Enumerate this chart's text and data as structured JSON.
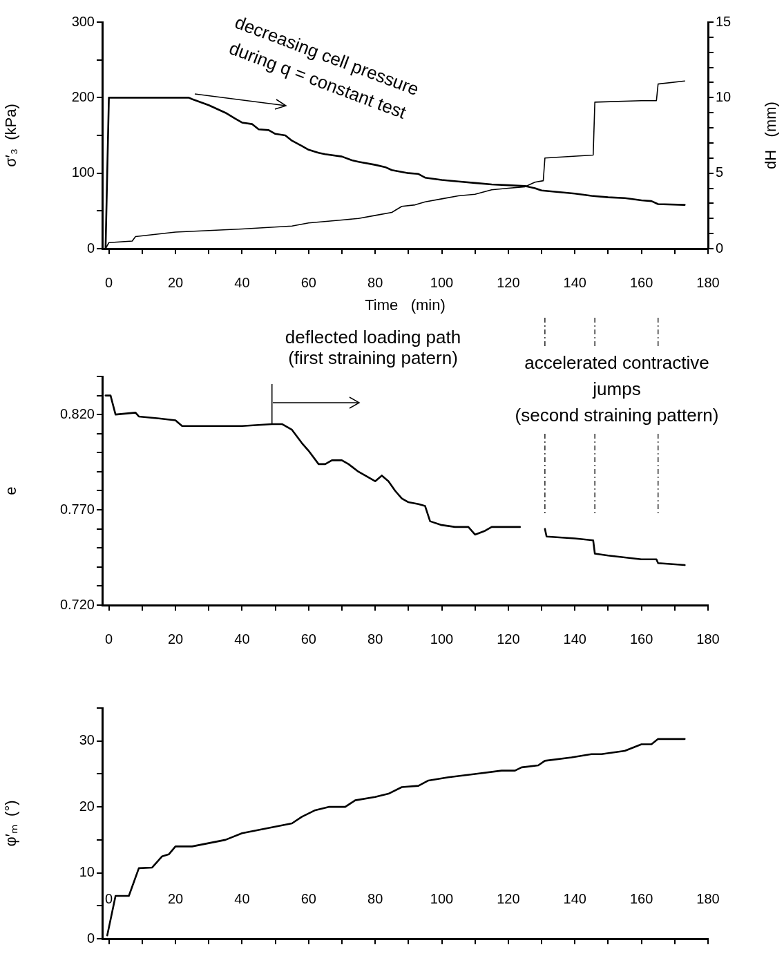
{
  "chart_data": [
    {
      "type": "line",
      "xlabel": "Time   (min)",
      "ylabel": "σ′₃  (kPa)",
      "y2label": "dH   (mm)",
      "xlim": [
        -2,
        180
      ],
      "xticks": [
        0,
        {
          "value": 10,
          "label": null
        },
        20,
        {
          "value": 30,
          "label": null
        },
        40,
        {
          "value": 50,
          "label": null
        },
        60,
        {
          "value": 70,
          "label": null
        },
        80,
        {
          "value": 90,
          "label": null
        },
        100,
        {
          "value": 110,
          "label": null
        },
        120,
        {
          "value": 130,
          "label": null
        },
        140,
        {
          "value": 150,
          "label": null
        },
        160,
        {
          "value": 170,
          "label": null
        },
        180
      ],
      "ylim": [
        0,
        300
      ],
      "yticks": [
        0,
        {
          "value": 50,
          "label": null
        },
        100,
        {
          "value": 150,
          "label": null
        },
        200,
        {
          "value": 250,
          "label": null
        },
        300
      ],
      "y2lim": [
        0,
        15
      ],
      "y2ticks": [
        0,
        {
          "value": 1,
          "label": null
        },
        {
          "value": 2,
          "label": null
        },
        {
          "value": 3,
          "label": null
        },
        {
          "value": 4,
          "label": null
        },
        5,
        {
          "value": 6,
          "label": null
        },
        {
          "value": 7,
          "label": null
        },
        {
          "value": 8,
          "label": null
        },
        {
          "value": 9,
          "label": null
        },
        10,
        {
          "value": 11,
          "label": null
        },
        {
          "value": 12,
          "label": null
        },
        {
          "value": 13,
          "label": null
        },
        {
          "value": 14,
          "label": null
        },
        15
      ],
      "annotations": [
        "decreasing cell pressure\nduring q = constant test"
      ],
      "series": [
        {
          "color": "#000000",
          "x": [
            -1,
            0,
            24,
            25,
            30,
            35,
            38,
            40,
            43,
            45,
            48,
            50,
            53,
            55,
            58,
            60,
            63,
            65,
            70,
            73,
            75,
            80,
            83,
            85,
            90,
            93,
            95,
            100,
            105,
            110,
            115,
            120,
            125,
            128,
            130,
            135,
            140,
            145,
            150,
            155,
            160,
            163,
            165,
            173
          ],
          "values": [
            0,
            200,
            200,
            198,
            190,
            180,
            172,
            167,
            165,
            158,
            157,
            152,
            150,
            143,
            136,
            131,
            127,
            125,
            122,
            117,
            115,
            111,
            108,
            104,
            100,
            99,
            94,
            91,
            89,
            87,
            85,
            84,
            83,
            80,
            77,
            75,
            73,
            70,
            68,
            67,
            64,
            63,
            59,
            58
          ]
        },
        {
          "color": "#000000",
          "axis": "y2",
          "x": [
            -1,
            0,
            7,
            8,
            20,
            40,
            55,
            60,
            70,
            75,
            80,
            85,
            88,
            92,
            95,
            100,
            105,
            110,
            115,
            120,
            125,
            128,
            130.5,
            131,
            145.5,
            146,
            160,
            164.5,
            165,
            173
          ],
          "values": [
            0,
            0.4,
            0.5,
            0.8,
            1.1,
            1.3,
            1.5,
            1.7,
            1.9,
            2.0,
            2.2,
            2.4,
            2.8,
            2.9,
            3.1,
            3.3,
            3.5,
            3.6,
            3.9,
            4.0,
            4.1,
            4.4,
            4.5,
            6.0,
            6.2,
            9.7,
            9.8,
            9.8,
            10.9,
            11.1
          ]
        }
      ]
    },
    {
      "type": "line",
      "ylabel": "e",
      "xlim": [
        -2,
        180
      ],
      "xticks": [
        0,
        {
          "value": 10,
          "label": null
        },
        20,
        {
          "value": 30,
          "label": null
        },
        40,
        {
          "value": 50,
          "label": null
        },
        60,
        {
          "value": 70,
          "label": null
        },
        80,
        {
          "value": 90,
          "label": null
        },
        100,
        {
          "value": 110,
          "label": null
        },
        120,
        {
          "value": 130,
          "label": null
        },
        140,
        {
          "value": 150,
          "label": null
        },
        160,
        {
          "value": 170,
          "label": null
        },
        180
      ],
      "ylim": [
        0.72,
        0.84
      ],
      "yticks": [
        {
          "value": 0.72,
          "label": "0.720"
        },
        {
          "value": 0.73,
          "label": null
        },
        {
          "value": 0.74,
          "label": null
        },
        {
          "value": 0.75,
          "label": null
        },
        {
          "value": 0.76,
          "label": null
        },
        {
          "value": 0.77,
          "label": "0.770"
        },
        {
          "value": 0.78,
          "label": null
        },
        {
          "value": 0.79,
          "label": null
        },
        {
          "value": 0.8,
          "label": null
        },
        {
          "value": 0.81,
          "label": null
        },
        {
          "value": 0.82,
          "label": "0.820"
        },
        {
          "value": 0.83,
          "label": null
        },
        {
          "value": 0.84,
          "label": null
        }
      ],
      "annotations": [
        {
          "text": "deflected loading path\n(first straining patern)",
          "x": 49,
          "y": 0.815
        },
        "accelerated contractive\njumps\n(second straining pattern)"
      ],
      "ref_lines": [
        {
          "axis": "x",
          "value": 131,
          "color": "#000000",
          "line_style": "dashed"
        },
        {
          "axis": "x",
          "value": 146,
          "color": "#000000",
          "line_style": "dashed"
        },
        {
          "axis": "x",
          "value": 165,
          "color": "#000000",
          "line_style": "dashed"
        }
      ],
      "series": [
        {
          "color": "#000000",
          "x": [
            -1,
            0.5,
            2,
            8,
            9,
            15,
            20,
            22,
            40,
            49,
            52,
            55,
            58,
            60,
            63,
            65,
            67,
            70,
            72,
            75,
            78,
            80,
            82,
            84,
            86,
            88,
            90,
            93,
            95,
            96.5,
            100,
            104,
            108,
            110,
            113,
            115,
            118,
            123.5,
            127,
            131,
            131.5,
            140,
            145.5,
            146,
            150,
            160,
            164.5,
            165,
            173
          ],
          "values": [
            0.83,
            0.83,
            0.82,
            0.821,
            0.819,
            0.818,
            0.817,
            0.814,
            0.814,
            0.815,
            0.815,
            0.812,
            0.805,
            0.801,
            0.794,
            0.794,
            0.796,
            0.796,
            0.794,
            0.79,
            0.787,
            0.785,
            0.788,
            0.785,
            0.78,
            0.776,
            0.774,
            0.773,
            0.772,
            0.764,
            0.762,
            0.761,
            0.761,
            0.757,
            0.759,
            0.761,
            0.761,
            0.761,
            null,
            0.76,
            0.756,
            0.755,
            0.754,
            0.747,
            0.746,
            0.744,
            0.744,
            0.742,
            0.741
          ]
        }
      ]
    },
    {
      "type": "line",
      "ylabel": "φ′ₘ  (°)",
      "xlim": [
        -2,
        180
      ],
      "xticks": [
        0,
        {
          "value": 10,
          "label": null
        },
        20,
        {
          "value": 30,
          "label": null
        },
        40,
        {
          "value": 50,
          "label": null
        },
        60,
        {
          "value": 70,
          "label": null
        },
        80,
        {
          "value": 90,
          "label": null
        },
        100,
        {
          "value": 110,
          "label": null
        },
        120,
        {
          "value": 130,
          "label": null
        },
        140,
        {
          "value": 150,
          "label": null
        },
        160,
        {
          "value": 170,
          "label": null
        },
        180
      ],
      "ylim": [
        0,
        35
      ],
      "yticks": [
        0,
        {
          "value": 5,
          "label": null
        },
        10,
        {
          "value": 15,
          "label": null
        },
        20,
        {
          "value": 25,
          "label": null
        },
        30,
        {
          "value": 35,
          "label": null
        }
      ],
      "series": [
        {
          "color": "#000000",
          "x": [
            -0.5,
            2,
            6,
            9,
            13,
            16,
            18,
            20,
            25,
            30,
            35,
            40,
            45,
            50,
            55,
            58,
            62,
            66,
            71,
            74,
            80,
            84,
            88,
            93,
            96,
            102,
            110,
            118,
            122,
            124,
            129,
            131,
            139,
            145,
            148,
            155,
            160,
            163,
            165,
            173
          ],
          "values": [
            0.5,
            6.5,
            6.5,
            10.7,
            10.8,
            12.5,
            12.8,
            14,
            14,
            14.5,
            15,
            16,
            16.5,
            17,
            17.5,
            18.5,
            19.5,
            20,
            20,
            21,
            21.5,
            22,
            23,
            23.2,
            24,
            24.5,
            25,
            25.5,
            25.5,
            26,
            26.3,
            27,
            27.5,
            28,
            28,
            28.5,
            29.5,
            29.5,
            30.3,
            30.3
          ]
        }
      ]
    }
  ]
}
